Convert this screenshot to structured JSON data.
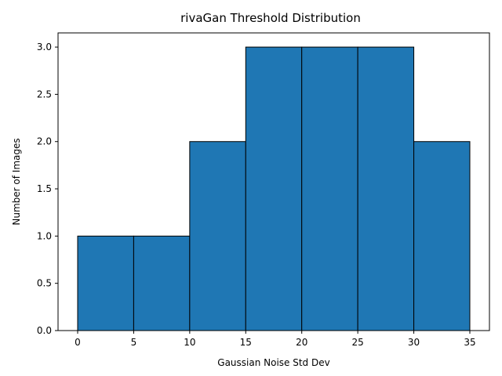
{
  "chart_data": {
    "type": "bar",
    "title": "rivaGan Threshold Distribution",
    "xlabel": "Gaussian Noise Std Dev",
    "ylabel": "Number of Images",
    "bins": [
      {
        "start": 0,
        "end": 5,
        "count": 1
      },
      {
        "start": 5,
        "end": 10,
        "count": 1
      },
      {
        "start": 10,
        "end": 15,
        "count": 2
      },
      {
        "start": 15,
        "end": 20,
        "count": 3
      },
      {
        "start": 20,
        "end": 25,
        "count": 3
      },
      {
        "start": 25,
        "end": 30,
        "count": 3
      },
      {
        "start": 30,
        "end": 35,
        "count": 2
      }
    ],
    "xlim": [
      -1.75,
      36.75
    ],
    "ylim": [
      0,
      3.15
    ],
    "xticks": [
      0,
      5,
      10,
      15,
      20,
      25,
      30,
      35
    ],
    "xtick_labels": [
      "0",
      "5",
      "10",
      "15",
      "20",
      "25",
      "30",
      "35"
    ],
    "yticks": [
      0,
      0.5,
      1.0,
      1.5,
      2.0,
      2.5,
      3.0
    ],
    "ytick_labels": [
      "0.0",
      "0.5",
      "1.0",
      "1.5",
      "2.0",
      "2.5",
      "3.0"
    ],
    "grid": false,
    "bar_color": "#1f77b4",
    "edge_color": "#000000"
  }
}
